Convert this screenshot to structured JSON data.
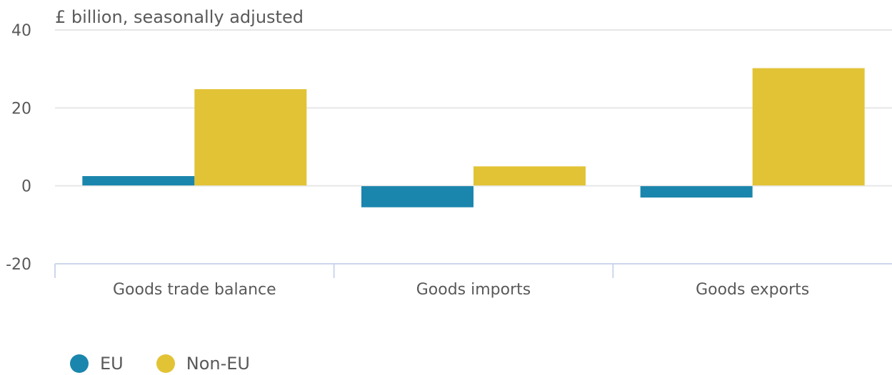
{
  "chart_data": {
    "type": "bar",
    "unit_label": "£ billion, seasonally adjusted",
    "categories": [
      "Goods trade balance",
      "Goods imports",
      "Goods exports"
    ],
    "series": [
      {
        "name": "EU",
        "color": "#1b86ad",
        "values": [
          2.5,
          -5.5,
          -3.0
        ]
      },
      {
        "name": "Non-EU",
        "color": "#e2c336",
        "values": [
          24.8,
          5.0,
          30.2
        ]
      }
    ],
    "ylim": [
      -20,
      40
    ],
    "yticks": [
      40,
      20,
      0,
      -20
    ],
    "ytick_labels": [
      "40",
      "20",
      "0",
      "-20"
    ],
    "grid": true,
    "legend_position": "bottom-left"
  }
}
